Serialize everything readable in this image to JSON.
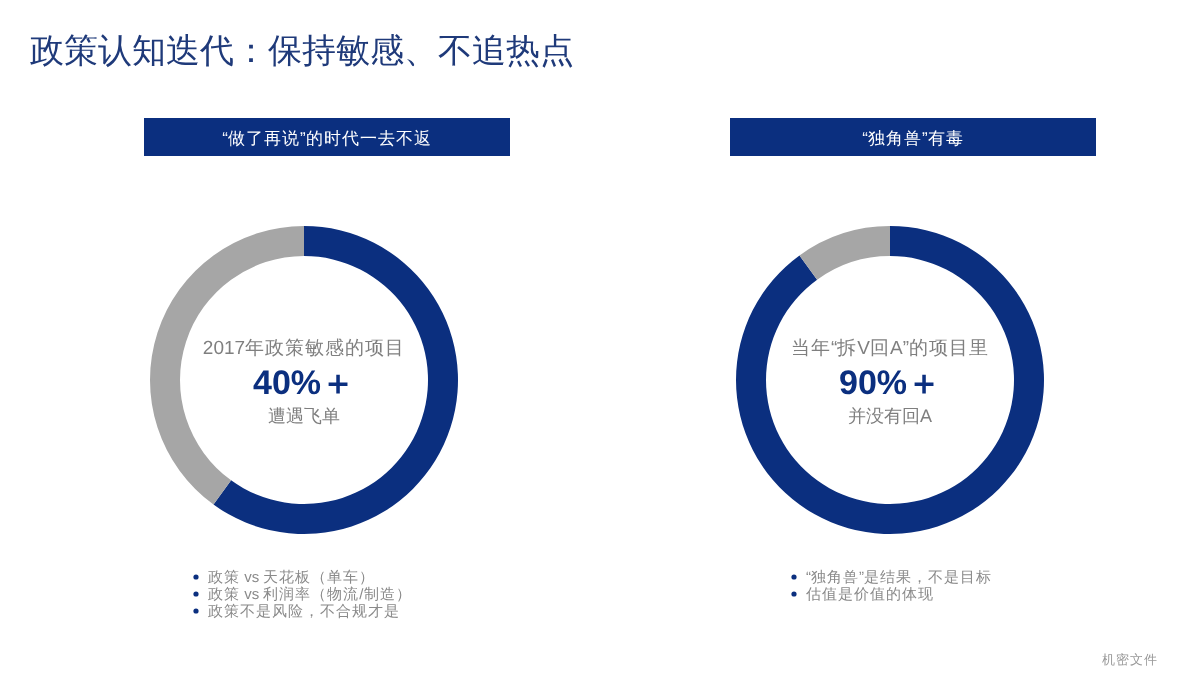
{
  "chart_data": [
    {
      "type": "donut",
      "title": "政策认知迭代：保持敏感、不追热点",
      "subtitle": "“做了再说”的时代一去不返",
      "categories": [
        null,
        null
      ],
      "values": [
        60,
        40
      ],
      "colors": [
        "#0b2f7f",
        "#a6a6a6"
      ],
      "annotations": [
        "2017年政策敏感的项目",
        "40%＋",
        "遭遇飞单",
        "政策 vs 天花板（单车）",
        "政策 vs 利润率（物流/制造）",
        "政策不是风险，不合规才是"
      ]
    },
    {
      "type": "donut",
      "subtitle": "“独角兽”有毒",
      "categories": [
        null,
        null
      ],
      "values": [
        90,
        10
      ],
      "colors": [
        "#0b2f7f",
        "#a6a6a6"
      ],
      "annotations": [
        "当年“拆V回A”的项目里",
        "90%＋",
        "并没有回A",
        "“独角兽”是结果，不是目标",
        "估值是价值的体现",
        "机密文件"
      ]
    }
  ]
}
